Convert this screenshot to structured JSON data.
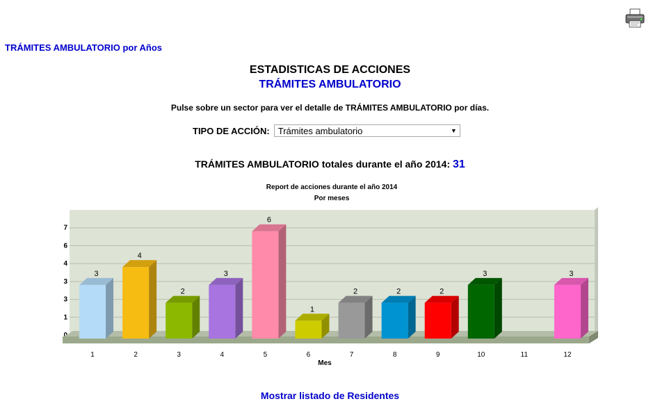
{
  "page": {
    "top_link": "TRÁMITES AMBULATORIO por Años",
    "title": "ESTADISTICAS DE ACCIONES",
    "subtitle": "TRÁMITES AMBULATORIO",
    "hint": "Pulse sobre un sector para ver el detalle de TRÁMITES AMBULATORIO por días.",
    "select_label": "TIPO DE ACCIÓN:",
    "select_value": "Trámites ambulatorio",
    "totals_label": "TRÁMITES AMBULATORIO totales durante el año 2014:",
    "totals_value": "31",
    "bottom_link": "Mostrar listado de Residentes",
    "print_icon": "printer-icon"
  },
  "chart_data": {
    "type": "bar",
    "title": "Report de acciones durante el año 2014",
    "subtitle": "Por meses",
    "xlabel": "Mes",
    "ylabel": "",
    "categories": [
      "1",
      "2",
      "3",
      "4",
      "5",
      "6",
      "7",
      "8",
      "9",
      "10",
      "11",
      "12"
    ],
    "values": [
      3,
      4,
      2,
      3,
      6,
      1,
      2,
      2,
      2,
      3,
      0,
      3
    ],
    "y_tick_labels": [
      "0",
      "1",
      "3",
      "3",
      "4",
      "6",
      "7"
    ],
    "ylim": [
      0,
      7
    ],
    "grid": true,
    "three_d": true,
    "colors": [
      "#b4dcf8",
      "#f7bc12",
      "#8cb800",
      "#a774e0",
      "#ff8aaa",
      "#cccc00",
      "#999999",
      "#0093d2",
      "#ff0000",
      "#006600",
      "#cccccc",
      "#ff66cc"
    ],
    "plot_background": "#dde3d5",
    "floor_color": "#9ca88c"
  }
}
